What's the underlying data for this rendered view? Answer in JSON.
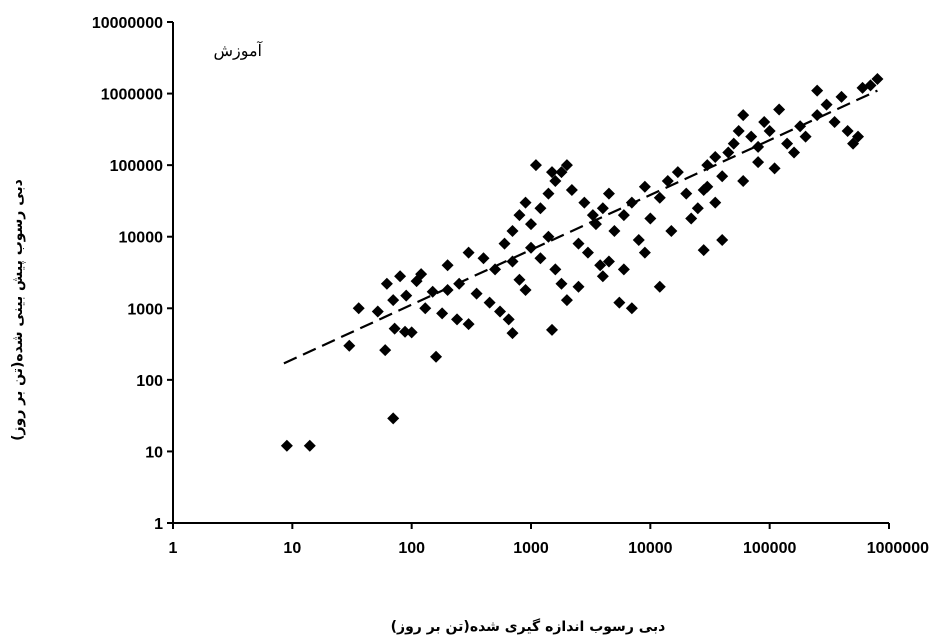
{
  "chart_data": {
    "type": "scatter",
    "annotation": "آموزش",
    "xlabel": "دبی رسوب اندازه گیری شده(تن بر روز)",
    "ylabel": "دبی رسوب پیش بینی شده(تن بر روز)",
    "x_scale": "log",
    "y_scale": "log",
    "xlim": [
      1,
      1000000
    ],
    "ylim": [
      1,
      10000000
    ],
    "x_ticks": [
      "1",
      "10",
      "100",
      "1000",
      "10000",
      "100000",
      "1000000"
    ],
    "y_ticks": [
      "1",
      "10",
      "100",
      "1000",
      "10000",
      "100000",
      "1000000",
      "10000000"
    ],
    "grid": false,
    "colors": {
      "marker": "#000000",
      "axis": "#000000",
      "trend": "#000000",
      "background": "#ffffff"
    },
    "marker_shape": "diamond",
    "trend_line": {
      "style": "dashed",
      "points": [
        [
          8.5,
          170
        ],
        [
          800000,
          1100000
        ]
      ]
    },
    "series": [
      {
        "points": [
          [
            9,
            12
          ],
          [
            14,
            12
          ],
          [
            70,
            29
          ],
          [
            30,
            300
          ],
          [
            60,
            260
          ],
          [
            160,
            210
          ],
          [
            36,
            1000
          ],
          [
            52,
            900
          ],
          [
            72,
            520
          ],
          [
            88,
            470
          ],
          [
            100,
            460
          ],
          [
            62,
            2200
          ],
          [
            80,
            2800
          ],
          [
            110,
            2400
          ],
          [
            150,
            1700
          ],
          [
            200,
            1800
          ],
          [
            70,
            1300
          ],
          [
            90,
            1500
          ],
          [
            130,
            1000
          ],
          [
            180,
            850
          ],
          [
            240,
            700
          ],
          [
            300,
            600
          ],
          [
            120,
            3000
          ],
          [
            200,
            4000
          ],
          [
            300,
            6000
          ],
          [
            400,
            5000
          ],
          [
            500,
            3500
          ],
          [
            250,
            2200
          ],
          [
            350,
            1600
          ],
          [
            450,
            1200
          ],
          [
            550,
            900
          ],
          [
            650,
            700
          ],
          [
            700,
            450
          ],
          [
            700,
            4500
          ],
          [
            800,
            2500
          ],
          [
            900,
            1800
          ],
          [
            1000,
            7000
          ],
          [
            1200,
            5000
          ],
          [
            1400,
            10000
          ],
          [
            1600,
            3500
          ],
          [
            1800,
            2200
          ],
          [
            2000,
            1300
          ],
          [
            2500,
            8000
          ],
          [
            3000,
            6000
          ],
          [
            3500,
            15000
          ],
          [
            4000,
            25000
          ],
          [
            4500,
            40000
          ],
          [
            5000,
            12000
          ],
          [
            6000,
            20000
          ],
          [
            7000,
            30000
          ],
          [
            8000,
            9000
          ],
          [
            9000,
            50000
          ],
          [
            10000,
            18000
          ],
          [
            12000,
            35000
          ],
          [
            600,
            8000
          ],
          [
            700,
            12000
          ],
          [
            800,
            20000
          ],
          [
            900,
            30000
          ],
          [
            1000,
            15000
          ],
          [
            1200,
            25000
          ],
          [
            1400,
            40000
          ],
          [
            1600,
            60000
          ],
          [
            1800,
            80000
          ],
          [
            2000,
            100000
          ],
          [
            1100,
            100000
          ],
          [
            1500,
            80000
          ],
          [
            2200,
            45000
          ],
          [
            2800,
            30000
          ],
          [
            3300,
            20000
          ],
          [
            3800,
            4000
          ],
          [
            4500,
            4500
          ],
          [
            5500,
            1200
          ],
          [
            7000,
            1000
          ],
          [
            12000,
            2000
          ],
          [
            14000,
            60000
          ],
          [
            17000,
            80000
          ],
          [
            20000,
            40000
          ],
          [
            25000,
            25000
          ],
          [
            28000,
            6500
          ],
          [
            30000,
            100000
          ],
          [
            35000,
            130000
          ],
          [
            40000,
            70000
          ],
          [
            45000,
            150000
          ],
          [
            50000,
            200000
          ],
          [
            55000,
            300000
          ],
          [
            60000,
            500000
          ],
          [
            70000,
            250000
          ],
          [
            80000,
            180000
          ],
          [
            90000,
            400000
          ],
          [
            100000,
            300000
          ],
          [
            120000,
            600000
          ],
          [
            140000,
            200000
          ],
          [
            160000,
            150000
          ],
          [
            180000,
            350000
          ],
          [
            200000,
            250000
          ],
          [
            250000,
            500000
          ],
          [
            300000,
            700000
          ],
          [
            350000,
            400000
          ],
          [
            400000,
            900000
          ],
          [
            450000,
            300000
          ],
          [
            500000,
            200000
          ],
          [
            550000,
            250000
          ],
          [
            600000,
            1200000
          ],
          [
            700000,
            1300000
          ],
          [
            800000,
            1600000
          ],
          [
            30000,
            50000
          ],
          [
            60000,
            60000
          ],
          [
            80000,
            110000
          ],
          [
            110000,
            90000
          ],
          [
            250000,
            1100000
          ],
          [
            1500,
            500
          ],
          [
            2500,
            2000
          ],
          [
            4000,
            2800
          ],
          [
            6000,
            3500
          ],
          [
            9000,
            6000
          ],
          [
            15000,
            12000
          ],
          [
            22000,
            18000
          ],
          [
            28000,
            45000
          ],
          [
            35000,
            30000
          ],
          [
            40000,
            9000
          ]
        ]
      }
    ]
  }
}
